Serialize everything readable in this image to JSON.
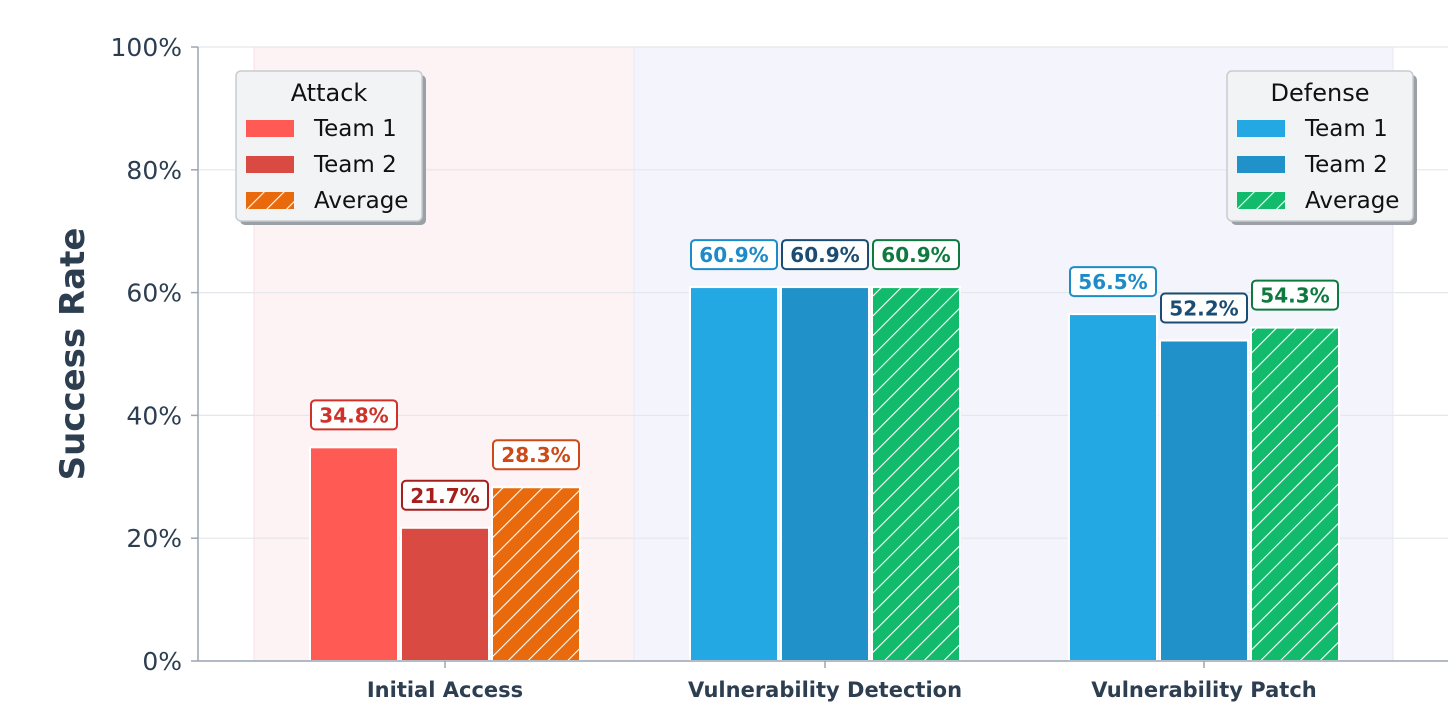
{
  "chart_data": {
    "type": "bar",
    "title": "",
    "xlabel": "",
    "ylabel": "Success Rate",
    "ylim": [
      0,
      100
    ],
    "yticks": [
      "0%",
      "20%",
      "40%",
      "60%",
      "80%",
      "100%"
    ],
    "ytick_values": [
      0,
      20,
      40,
      60,
      80,
      100
    ],
    "grid": true,
    "categories": [
      "Initial Access",
      "Vulnerability Detection",
      "Vulnerability Patch"
    ],
    "category_type": [
      "attack",
      "defense",
      "defense"
    ],
    "series": [
      {
        "name": "Team 1",
        "values": [
          34.8,
          60.9,
          56.5
        ],
        "labels": [
          "34.8%",
          "60.9%",
          "56.5%"
        ]
      },
      {
        "name": "Team 2",
        "values": [
          21.7,
          60.9,
          52.2
        ],
        "labels": [
          "21.7%",
          "60.9%",
          "52.2%"
        ]
      },
      {
        "name": "Average",
        "values": [
          28.3,
          60.9,
          54.3
        ],
        "labels": [
          "28.3%",
          "60.9%",
          "54.3%"
        ]
      }
    ],
    "legends": [
      {
        "title": "Attack",
        "placement": "top-left",
        "entries": [
          "Team 1",
          "Team 2",
          "Average"
        ]
      },
      {
        "title": "Defense",
        "placement": "top-right",
        "entries": [
          "Team 1",
          "Team 2",
          "Average"
        ]
      }
    ],
    "colors": {
      "attack": {
        "fill": [
          "#ff5b54",
          "#d94b42",
          "#e86a0c"
        ],
        "text": [
          "#d0322a",
          "#a51f1c",
          "#cc4a18"
        ]
      },
      "defense": {
        "fill": [
          "#23a8e4",
          "#2092c9",
          "#12bb6c"
        ],
        "text": [
          "#1e8bc9",
          "#1b4d72",
          "#0f7a40"
        ]
      },
      "band_attack": "#fdf3f4",
      "band_defense": "#f4f5fc",
      "axis_text": "#2c3e50"
    }
  }
}
